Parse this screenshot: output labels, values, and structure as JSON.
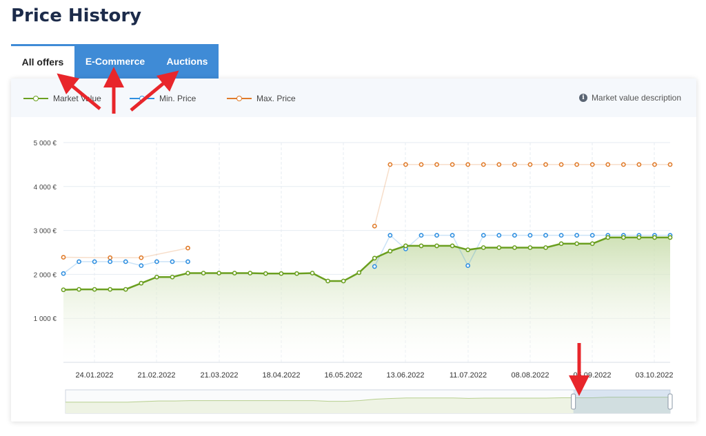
{
  "page_title": "Price History",
  "tabs": [
    {
      "label": "All offers",
      "active": true
    },
    {
      "label": "E-Commerce",
      "active": false
    },
    {
      "label": "Auctions",
      "active": false
    }
  ],
  "legend": [
    {
      "label": "Market Value",
      "color": "#6a9f1f"
    },
    {
      "label": "Min. Price",
      "color": "#2f8fe0"
    },
    {
      "label": "Max. Price",
      "color": "#e07b2a"
    }
  ],
  "description_link": "Market value description",
  "description_icon": "info-icon",
  "annotation_arrows_color": "#e8262b",
  "navigator": {
    "selection_start_fraction": 0.84,
    "selection_end_fraction": 1.0
  },
  "chart_data": {
    "type": "line",
    "x_tick_labels": [
      "24.01.2022",
      "21.02.2022",
      "21.03.2022",
      "18.04.2022",
      "16.05.2022",
      "13.06.2022",
      "11.07.2022",
      "08.08.2022",
      "05.09.2022",
      "03.10.2022"
    ],
    "y_tick_labels": [
      "5 000 €",
      "4 000 €",
      "3 000 €",
      "2 000 €",
      "1 000 €"
    ],
    "ylim": [
      0,
      5000
    ],
    "grid": true,
    "legend_position": "top-left",
    "series": [
      {
        "name": "Market Value",
        "color": "#6a9f1f",
        "area": true,
        "values": [
          1650,
          1660,
          1660,
          1660,
          1660,
          1800,
          1940,
          1940,
          2030,
          2030,
          2030,
          2030,
          2030,
          2020,
          2020,
          2020,
          2030,
          1850,
          1850,
          2040,
          2370,
          2530,
          2650,
          2650,
          2650,
          2650,
          2560,
          2610,
          2610,
          2610,
          2610,
          2610,
          2700,
          2700,
          2700,
          2840,
          2840,
          2840,
          2840,
          2840
        ]
      },
      {
        "name": "Min. Price",
        "color": "#2f8fe0",
        "area": false,
        "values": [
          2020,
          2290,
          2290,
          2290,
          2290,
          2200,
          2290,
          2290,
          2290,
          null,
          null,
          null,
          null,
          null,
          null,
          null,
          null,
          null,
          null,
          null,
          2180,
          2890,
          2580,
          2890,
          2890,
          2890,
          2200,
          2890,
          2890,
          2890,
          2890,
          2890,
          2890,
          2890,
          2890,
          2890,
          2890,
          2890,
          2890,
          2890
        ]
      },
      {
        "name": "Max. Price",
        "color": "#e07b2a",
        "area": false,
        "values": [
          2390,
          null,
          null,
          2380,
          null,
          2380,
          null,
          null,
          2600,
          null,
          null,
          null,
          null,
          null,
          null,
          null,
          null,
          null,
          null,
          null,
          3100,
          4500,
          4500,
          4500,
          4500,
          4500,
          4500,
          4500,
          4500,
          4500,
          4500,
          4500,
          4500,
          4500,
          4500,
          4500,
          4500,
          4500,
          4500,
          4500
        ]
      }
    ]
  }
}
